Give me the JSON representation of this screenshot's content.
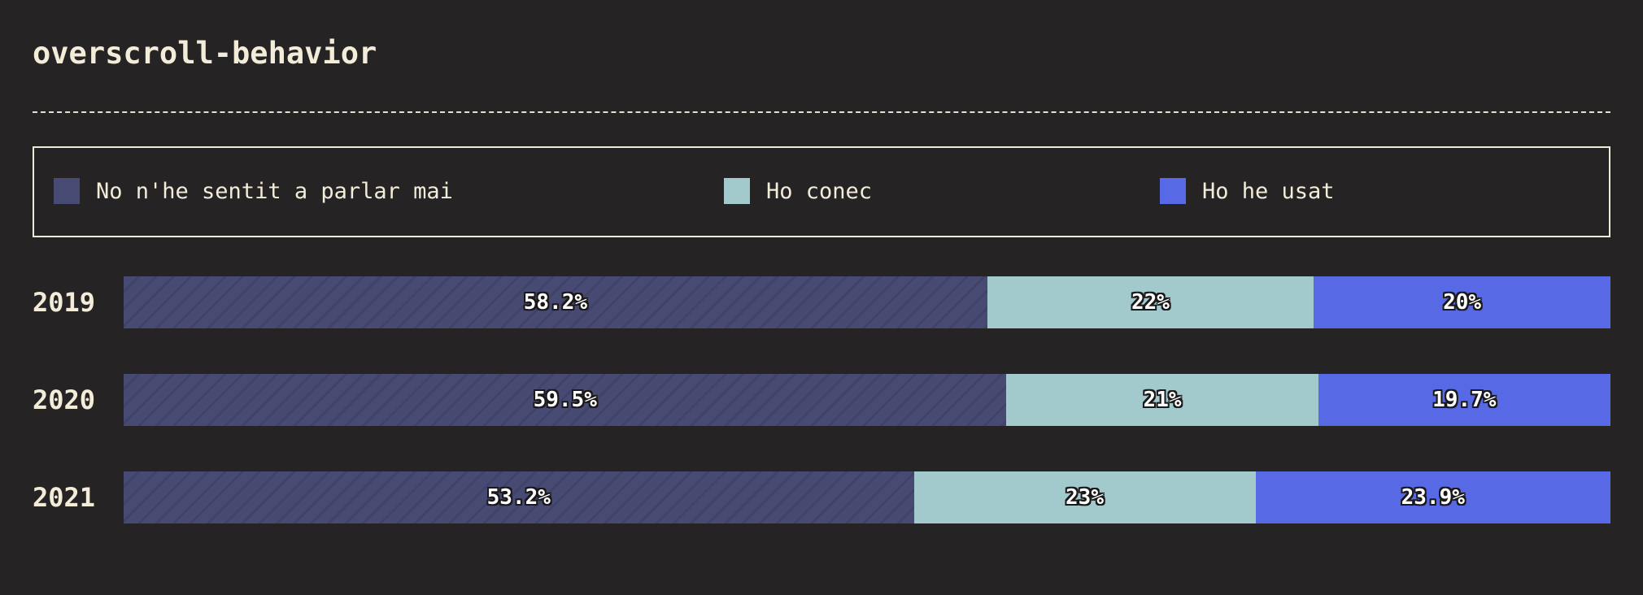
{
  "title": "overscroll-behavior",
  "legend": [
    {
      "label": "No n'he sentit a parlar mai",
      "color": "#474b73",
      "icon": "square-swatch"
    },
    {
      "label": "Ho conec",
      "color": "#a2c9cb",
      "icon": "square-swatch"
    },
    {
      "label": "Ho he usat",
      "color": "#5869e5",
      "icon": "square-swatch"
    }
  ],
  "chart_data": {
    "type": "bar",
    "orientation": "horizontal",
    "stacked": true,
    "normalized": true,
    "title": "overscroll-behavior",
    "categories": [
      "2019",
      "2020",
      "2021"
    ],
    "series": [
      {
        "name": "No n'he sentit a parlar mai",
        "color": "#474b73",
        "values": [
          58.2,
          59.5,
          53.2
        ],
        "labels": [
          "58.2%",
          "59.5%",
          "53.2%"
        ]
      },
      {
        "name": "Ho conec",
        "color": "#a2c9cb",
        "values": [
          22,
          21,
          23
        ],
        "labels": [
          "22%",
          "21%",
          "23%"
        ]
      },
      {
        "name": "Ho he usat",
        "color": "#5869e5",
        "values": [
          20,
          19.7,
          23.9
        ],
        "labels": [
          "20%",
          "19.7%",
          "23.9%"
        ]
      }
    ],
    "xlim": [
      0,
      100
    ],
    "legend_position": "top"
  }
}
